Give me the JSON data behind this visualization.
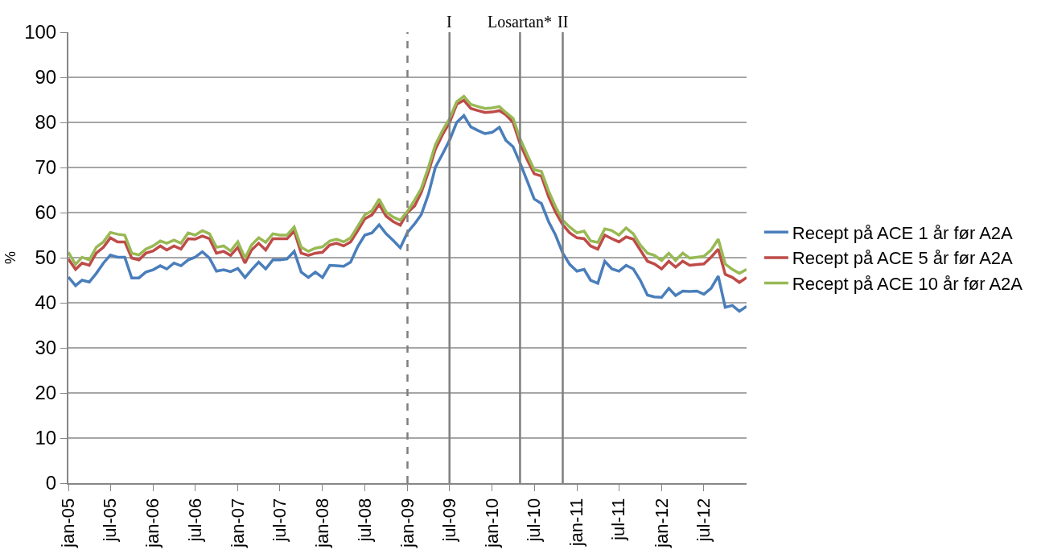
{
  "chart_data": {
    "type": "line",
    "ylabel": "%",
    "x": [
      "2005-01",
      "2005-02",
      "2005-03",
      "2005-04",
      "2005-05",
      "2005-06",
      "2005-07",
      "2005-08",
      "2005-09",
      "2005-10",
      "2005-11",
      "2005-12",
      "2006-01",
      "2006-02",
      "2006-03",
      "2006-04",
      "2006-05",
      "2006-06",
      "2006-07",
      "2006-08",
      "2006-09",
      "2006-10",
      "2006-11",
      "2006-12",
      "2007-01",
      "2007-02",
      "2007-03",
      "2007-04",
      "2007-05",
      "2007-06",
      "2007-07",
      "2007-08",
      "2007-09",
      "2007-10",
      "2007-11",
      "2007-12",
      "2008-01",
      "2008-02",
      "2008-03",
      "2008-04",
      "2008-05",
      "2008-06",
      "2008-07",
      "2008-08",
      "2008-09",
      "2008-10",
      "2008-11",
      "2008-12",
      "2009-01",
      "2009-02",
      "2009-03",
      "2009-04",
      "2009-05",
      "2009-06",
      "2009-07",
      "2009-08",
      "2009-09",
      "2009-10",
      "2009-11",
      "2009-12",
      "2010-01",
      "2010-02",
      "2010-03",
      "2010-04",
      "2010-05",
      "2010-06",
      "2010-07",
      "2010-08",
      "2010-09",
      "2010-10",
      "2010-11",
      "2010-12",
      "2011-01",
      "2011-02",
      "2011-03",
      "2011-04",
      "2011-05",
      "2011-06",
      "2011-07",
      "2011-08",
      "2011-09",
      "2011-10",
      "2011-11",
      "2011-12",
      "2012-01",
      "2012-02",
      "2012-03",
      "2012-04",
      "2012-05",
      "2012-06",
      "2012-07",
      "2012-08",
      "2012-09",
      "2012-10",
      "2012-11",
      "2012-12",
      "2013-01"
    ],
    "series": [
      {
        "name": "Recept på ACE 1 år før A2A",
        "color": "#4a7ebb",
        "values": [
          45.7,
          43.8,
          45,
          44.6,
          46.5,
          48.8,
          50.6,
          50.1,
          50.1,
          45.5,
          45.5,
          46.8,
          47.3,
          48.2,
          47.5,
          48.8,
          48.2,
          49.5,
          50.1,
          51.3,
          49.9,
          47,
          47.3,
          46.9,
          47.6,
          45.6,
          47.3,
          49,
          47.5,
          49.5,
          49.5,
          49.7,
          51.4,
          46.8,
          45.6,
          46.8,
          45.6,
          48.3,
          48.2,
          48.1,
          49,
          52.5,
          55,
          55.5,
          57.3,
          55.3,
          53.8,
          52.2,
          55.6,
          57.5,
          59.5,
          64,
          70,
          73,
          76,
          80,
          81.5,
          79,
          78.2,
          77.5,
          77.8,
          78.9,
          76,
          74.6,
          71,
          67,
          63,
          62,
          58,
          55,
          51,
          48.5,
          47,
          47.4,
          45,
          44.3,
          49.2,
          47.5,
          47,
          48.3,
          47.5,
          45,
          41.7,
          41.3,
          41.2,
          43.2,
          41.6,
          42.6,
          42.5,
          42.6,
          41.9,
          43.2,
          45.9,
          39,
          39.4,
          38.1,
          39.2
        ]
      },
      {
        "name": "Recept på ACE 5 år før A2A",
        "color": "#be4b48",
        "values": [
          49.7,
          47.4,
          48.8,
          48.3,
          51,
          52.3,
          54.4,
          53.5,
          53.5,
          49.9,
          49.5,
          51,
          51.5,
          52.6,
          51.7,
          52.6,
          51.9,
          54.2,
          54.1,
          54.8,
          54.2,
          51,
          51.4,
          50.5,
          52.3,
          48.8,
          51.7,
          53.2,
          51.7,
          54.2,
          54.2,
          54.2,
          55.9,
          51,
          50.5,
          51,
          51.2,
          52.8,
          53.2,
          52.6,
          53.5,
          56,
          58.6,
          59.5,
          61.8,
          59.2,
          58,
          57.2,
          60,
          61.5,
          64.4,
          69,
          74,
          77.3,
          79.9,
          84,
          84.9,
          83.1,
          82.6,
          82.2,
          82.3,
          82.6,
          81.7,
          80,
          75.3,
          71.7,
          68.6,
          68.1,
          63.5,
          60.1,
          57.3,
          55.5,
          54.4,
          54.2,
          52.6,
          51.9,
          55,
          54.2,
          53.5,
          54.6,
          54.1,
          51.7,
          49.2,
          48.6,
          47.5,
          49.2,
          47.9,
          49.2,
          48.3,
          48.5,
          48.6,
          50.1,
          51.9,
          46.3,
          45.6,
          44.5,
          45.6
        ]
      },
      {
        "name": "Recept på ACE 10 år før A2A",
        "color": "#98b954",
        "values": [
          51.2,
          48.5,
          50.1,
          49.5,
          52.3,
          53.5,
          55.6,
          55.2,
          55,
          51,
          50.6,
          51.9,
          52.6,
          53.7,
          53.2,
          53.9,
          53.2,
          55.5,
          55,
          56,
          55.3,
          52.3,
          52.6,
          51.5,
          53.5,
          49.9,
          52.8,
          54.4,
          53.4,
          55.3,
          55,
          55,
          56.8,
          52.3,
          51.4,
          52.1,
          52.4,
          53.7,
          54.1,
          53.5,
          54.4,
          57,
          59.5,
          60.4,
          63,
          60.1,
          59,
          58.3,
          60.3,
          62.8,
          65.3,
          70,
          75,
          78.2,
          80.8,
          84.6,
          85.8,
          84,
          83.5,
          83.1,
          83.2,
          83.5,
          82.2,
          80.9,
          76.4,
          72.8,
          69.5,
          69.1,
          64.8,
          61.3,
          58.3,
          56.8,
          55.5,
          55.9,
          53.7,
          53.4,
          56.4,
          56,
          55,
          56.6,
          55.3,
          52.8,
          51,
          50.5,
          49.4,
          51,
          49.4,
          51,
          49.9,
          50.1,
          50.3,
          51.7,
          54.1,
          48.6,
          47.4,
          46.5,
          47.4
        ]
      }
    ],
    "xlim": [
      "2005-01",
      "2013-01"
    ],
    "xticks": [
      {
        "value": "2005-01",
        "label": "jan-05"
      },
      {
        "value": "2005-07",
        "label": "jul-05"
      },
      {
        "value": "2006-01",
        "label": "jan-06"
      },
      {
        "value": "2006-07",
        "label": "jul-06"
      },
      {
        "value": "2007-01",
        "label": "jan-07"
      },
      {
        "value": "2007-07",
        "label": "jul-07"
      },
      {
        "value": "2008-01",
        "label": "jan-08"
      },
      {
        "value": "2008-07",
        "label": "jul-08"
      },
      {
        "value": "2009-01",
        "label": "jan-09"
      },
      {
        "value": "2009-07",
        "label": "jul-09"
      },
      {
        "value": "2010-01",
        "label": "jan-10"
      },
      {
        "value": "2010-07",
        "label": "jul-10"
      },
      {
        "value": "2011-01",
        "label": "jan-11"
      },
      {
        "value": "2011-07",
        "label": "jul-11"
      },
      {
        "value": "2012-01",
        "label": "jan-12"
      },
      {
        "value": "2012-07",
        "label": "jul-12"
      }
    ],
    "ylim": [
      0,
      100
    ],
    "yticks": [
      0,
      10,
      20,
      30,
      40,
      50,
      60,
      70,
      80,
      90,
      100
    ],
    "ref_lines": [
      {
        "axis": "x",
        "value": "2009-01",
        "color": "#7f7f7f",
        "line_style": "dashed"
      },
      {
        "axis": "x",
        "value": "2009-07",
        "label": "I",
        "color": "#7f7f7f",
        "line_style": "solid"
      },
      {
        "axis": "x",
        "value": "2010-05",
        "label": "Losartan*",
        "color": "#7f7f7f",
        "line_style": "solid"
      },
      {
        "axis": "x",
        "value": "2010-11",
        "label": "II",
        "color": "#7f7f7f",
        "line_style": "solid"
      }
    ],
    "grid": "y",
    "legend": "right",
    "marker": "none",
    "line_style": "solid"
  }
}
